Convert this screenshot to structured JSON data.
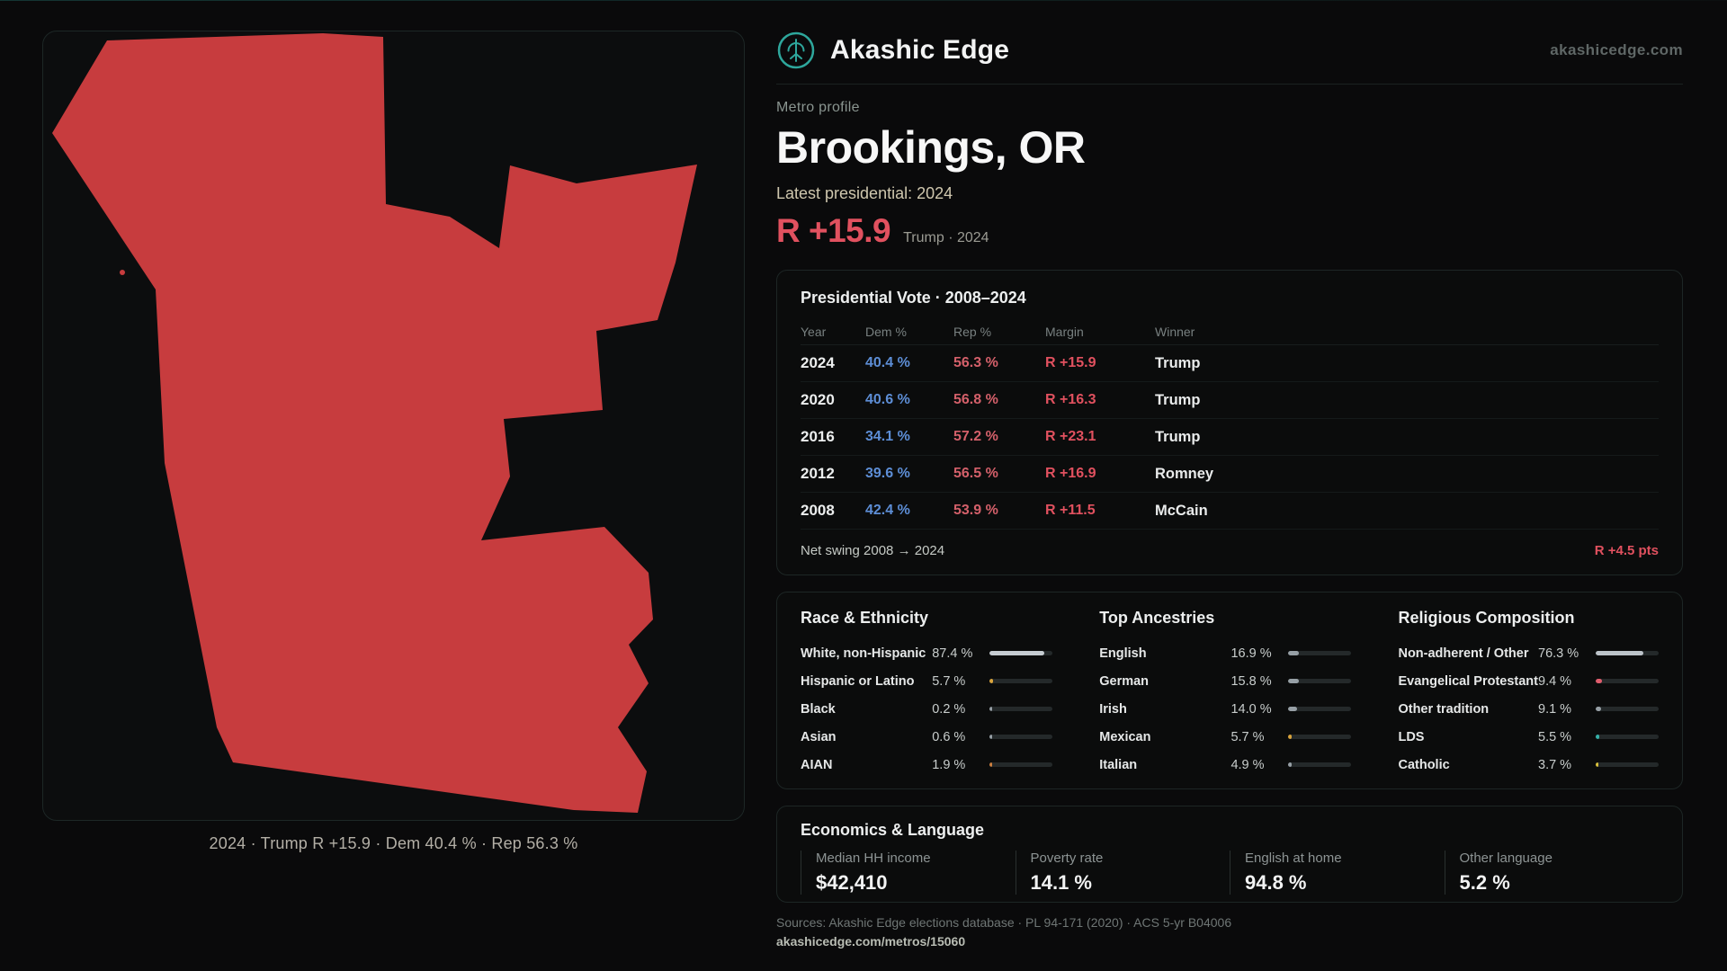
{
  "colors": {
    "accent_red": "#e1515f",
    "dem_blue": "#5d8ed6",
    "rep_red": "#d4606a",
    "map_fill": "#c73c3e",
    "teal": "#2ea79c"
  },
  "header": {
    "brand": "Akashic Edge",
    "site": "akashicedge.com"
  },
  "profile": {
    "eyebrow": "Metro profile",
    "title": "Brookings, OR",
    "latest_label": "Latest presidential: 2024",
    "margin_value": "R +15.9",
    "margin_context": "Trump · 2024"
  },
  "map": {
    "caption": "2024 · Trump R +15.9 · Dem 40.4 % · Rep 56.3 %"
  },
  "vote_table": {
    "title": "Presidential Vote · 2008–2024",
    "columns": [
      "Year",
      "Dem %",
      "Rep %",
      "Margin",
      "Winner"
    ],
    "rows": [
      {
        "year": "2024",
        "dem": "40.4 %",
        "rep": "56.3 %",
        "margin": "R +15.9",
        "winner": "Trump"
      },
      {
        "year": "2020",
        "dem": "40.6 %",
        "rep": "56.8 %",
        "margin": "R +16.3",
        "winner": "Trump"
      },
      {
        "year": "2016",
        "dem": "34.1 %",
        "rep": "57.2 %",
        "margin": "R +23.1",
        "winner": "Trump"
      },
      {
        "year": "2012",
        "dem": "39.6 %",
        "rep": "56.5 %",
        "margin": "R +16.9",
        "winner": "Romney"
      },
      {
        "year": "2008",
        "dem": "42.4 %",
        "rep": "53.9 %",
        "margin": "R +11.5",
        "winner": "McCain"
      }
    ],
    "footer_label": "Net swing 2008 → 2024",
    "footer_value": "R +4.5 pts"
  },
  "demographics": {
    "race": {
      "title": "Race & Ethnicity",
      "rows": [
        {
          "label": "White, non-Hispanic",
          "value": "87.4 %",
          "pct": 87.4,
          "color": "#c6ccd2"
        },
        {
          "label": "Hispanic or Latino",
          "value": "5.7 %",
          "pct": 5.7,
          "color": "#d9a43c"
        },
        {
          "label": "Black",
          "value": "0.2 %",
          "pct": 0.2,
          "color": "#97a0a6"
        },
        {
          "label": "Asian",
          "value": "0.6 %",
          "pct": 0.6,
          "color": "#97a0a6"
        },
        {
          "label": "AIAN",
          "value": "1.9 %",
          "pct": 1.9,
          "color": "#cd7f3f"
        }
      ]
    },
    "ancestries": {
      "title": "Top Ancestries",
      "rows": [
        {
          "label": "English",
          "value": "16.9 %",
          "pct": 16.9,
          "color": "#97a0a6"
        },
        {
          "label": "German",
          "value": "15.8 %",
          "pct": 15.8,
          "color": "#97a0a6"
        },
        {
          "label": "Irish",
          "value": "14.0 %",
          "pct": 14.0,
          "color": "#97a0a6"
        },
        {
          "label": "Mexican",
          "value": "5.7 %",
          "pct": 5.7,
          "color": "#d9a43c"
        },
        {
          "label": "Italian",
          "value": "4.9 %",
          "pct": 4.9,
          "color": "#97a0a6"
        }
      ]
    },
    "religion": {
      "title": "Religious Composition",
      "rows": [
        {
          "label": "Non-adherent / Other",
          "value": "76.3 %",
          "pct": 76.3,
          "color": "#bcc3c9"
        },
        {
          "label": "Evangelical Protestant",
          "value": "9.4 %",
          "pct": 9.4,
          "color": "#e05d6d"
        },
        {
          "label": "Other tradition",
          "value": "9.1 %",
          "pct": 9.1,
          "color": "#97a0a6"
        },
        {
          "label": "LDS",
          "value": "5.5 %",
          "pct": 5.5,
          "color": "#35b0a8"
        },
        {
          "label": "Catholic",
          "value": "3.7 %",
          "pct": 3.7,
          "color": "#d9c13c"
        }
      ]
    }
  },
  "economics": {
    "title": "Economics & Language",
    "stats": [
      {
        "label": "Median HH income",
        "value": "$42,410"
      },
      {
        "label": "Poverty rate",
        "value": "14.1 %"
      },
      {
        "label": "English at home",
        "value": "94.8 %"
      },
      {
        "label": "Other language",
        "value": "5.2 %"
      }
    ]
  },
  "footer": {
    "sources": "Sources: Akashic Edge elections database · PL 94-171 (2020) · ACS 5-yr B04006",
    "permalink": "akashicedge.com/metros/15060"
  }
}
